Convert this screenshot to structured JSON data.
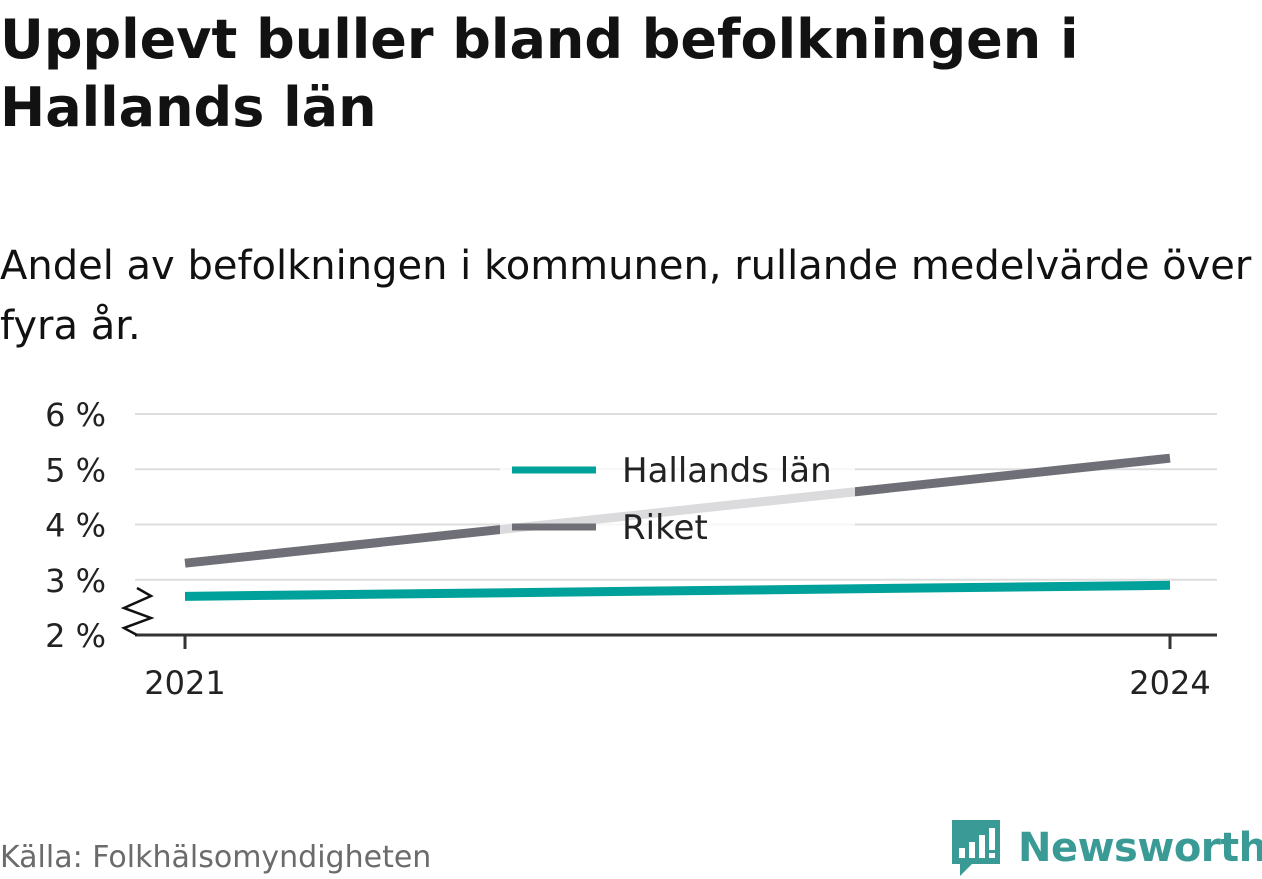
{
  "title": "Upplevt buller bland befolkningen i Hallands län",
  "subtitle": "Andel av befolkningen i kommunen, rullande medelvärde över fyra år.",
  "source": "Källa: Folkhälsomyndigheten",
  "brand": "Newsworthy",
  "colors": {
    "hallands": "#00a19a",
    "riket": "#6f6f77",
    "grid": "#dddddd",
    "axis": "#333333",
    "brand": "#3a9b96"
  },
  "chart_data": {
    "type": "line",
    "x": [
      2021,
      2024
    ],
    "x_tick_labels": [
      "2021",
      "2024"
    ],
    "y_tick_labels": [
      "2 %",
      "3 %",
      "4 %",
      "5 %",
      "6 %"
    ],
    "y_ticks": [
      2,
      3,
      4,
      5,
      6
    ],
    "ylim": [
      2,
      6
    ],
    "y_axis_break": true,
    "grid": true,
    "legend_position": "top-center",
    "series": [
      {
        "name": "Hallands län",
        "color": "#00a19a",
        "values": [
          2.7,
          2.9
        ]
      },
      {
        "name": "Riket",
        "color": "#6f6f77",
        "values": [
          3.3,
          5.2
        ]
      }
    ]
  }
}
